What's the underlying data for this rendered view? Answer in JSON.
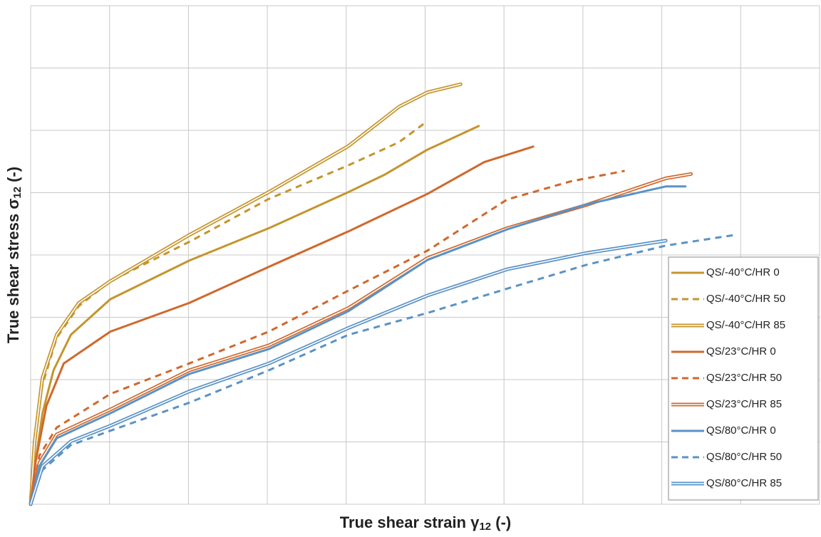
{
  "chart_data": {
    "type": "line",
    "x_label": {
      "text": "True shear strain γ",
      "sub": "12",
      "suffix": " (-)"
    },
    "y_label": {
      "text": "True shear stress σ",
      "sub": "12",
      "suffix": " (-)"
    },
    "xlim": [
      0,
      10
    ],
    "ylim": [
      0,
      8
    ],
    "xticks": [
      0,
      1,
      2,
      3,
      4,
      5,
      6,
      7,
      8,
      9,
      10
    ],
    "yticks": [
      0,
      1,
      2,
      3,
      4,
      5,
      6,
      7,
      8
    ],
    "show_tick_labels": false,
    "grid": true,
    "legend": "right",
    "series": [
      {
        "name": "QS/-40°C/HR 0",
        "color": "#c4952d",
        "style": "solid",
        "x": [
          0,
          0.06,
          0.15,
          0.29,
          0.51,
          1.01,
          2.01,
          3.02,
          4.03,
          4.49,
          5.03,
          5.39,
          5.68
        ],
        "values": [
          0,
          0.66,
          1.46,
          2.15,
          2.72,
          3.29,
          3.91,
          4.43,
          5.01,
          5.29,
          5.69,
          5.9,
          6.07
        ]
      },
      {
        "name": "QS/-40°C/HR 50",
        "color": "#c4952d",
        "style": "dashed",
        "x": [
          0,
          0.05,
          0.15,
          0.33,
          0.61,
          1.01,
          2.01,
          3.02,
          4.03,
          4.67,
          5.01
        ],
        "values": [
          0,
          1.0,
          1.92,
          2.67,
          3.18,
          3.58,
          4.21,
          4.9,
          5.44,
          5.81,
          6.13
        ]
      },
      {
        "name": "QS/-40°C/HR 85",
        "color": "#c4952d",
        "style": "double",
        "x": [
          0,
          0.05,
          0.15,
          0.33,
          0.61,
          1.01,
          2.01,
          3.02,
          4.03,
          4.67,
          5.03,
          5.45
        ],
        "values": [
          0,
          1.0,
          2.03,
          2.72,
          3.23,
          3.58,
          4.32,
          5.01,
          5.75,
          6.38,
          6.61,
          6.74
        ]
      },
      {
        "name": "QS/23°C/HR 0",
        "color": "#d0682c",
        "style": "solid",
        "x": [
          0,
          0.06,
          0.2,
          0.42,
          1.01,
          2.01,
          3.02,
          4.03,
          5.03,
          5.75,
          6.37
        ],
        "values": [
          0,
          0.66,
          1.58,
          2.26,
          2.77,
          3.23,
          3.81,
          4.38,
          4.98,
          5.49,
          5.74
        ]
      },
      {
        "name": "QS/23°C/HR 50",
        "color": "#d0682c",
        "style": "dashed",
        "x": [
          0,
          0.11,
          0.33,
          1.01,
          2.01,
          3.02,
          4.03,
          5.03,
          6.04,
          6.84,
          7.53
        ],
        "values": [
          0,
          0.78,
          1.23,
          1.77,
          2.26,
          2.77,
          3.43,
          4.07,
          4.89,
          5.18,
          5.35
        ]
      },
      {
        "name": "QS/23°C/HR 85",
        "color": "#d0682c",
        "style": "double",
        "x": [
          0,
          0.11,
          0.33,
          1.01,
          2.01,
          3.02,
          4.03,
          5.03,
          6.04,
          7.04,
          8.05,
          8.37
        ],
        "values": [
          0,
          0.66,
          1.12,
          1.52,
          2.15,
          2.55,
          3.15,
          3.95,
          4.43,
          4.8,
          5.23,
          5.3
        ]
      },
      {
        "name": "QS/80°C/HR 0",
        "color": "#5a92c6",
        "style": "solid",
        "x": [
          0,
          0.11,
          0.33,
          1.01,
          2.01,
          3.02,
          4.03,
          5.03,
          6.04,
          7.04,
          8.05,
          8.3
        ],
        "values": [
          0,
          0.61,
          1.06,
          1.46,
          2.09,
          2.49,
          3.1,
          3.92,
          4.41,
          4.81,
          5.1,
          5.1
        ]
      },
      {
        "name": "QS/80°C/HR 50",
        "color": "#5a92c6",
        "style": "dashed",
        "x": [
          0,
          0.15,
          0.51,
          1.01,
          2.01,
          3.02,
          4.03,
          5.03,
          6.04,
          7.04,
          8.05,
          8.92
        ],
        "values": [
          0,
          0.55,
          0.95,
          1.18,
          1.63,
          2.15,
          2.72,
          3.07,
          3.46,
          3.84,
          4.15,
          4.32
        ]
      },
      {
        "name": "QS/80°C/HR 85",
        "color": "#5a92c6",
        "style": "double",
        "x": [
          0,
          0.15,
          0.51,
          1.01,
          2.01,
          3.02,
          4.03,
          5.03,
          6.04,
          7.04,
          8.05
        ],
        "values": [
          0,
          0.61,
          1.01,
          1.26,
          1.81,
          2.26,
          2.83,
          3.35,
          3.77,
          4.03,
          4.23
        ]
      }
    ]
  }
}
